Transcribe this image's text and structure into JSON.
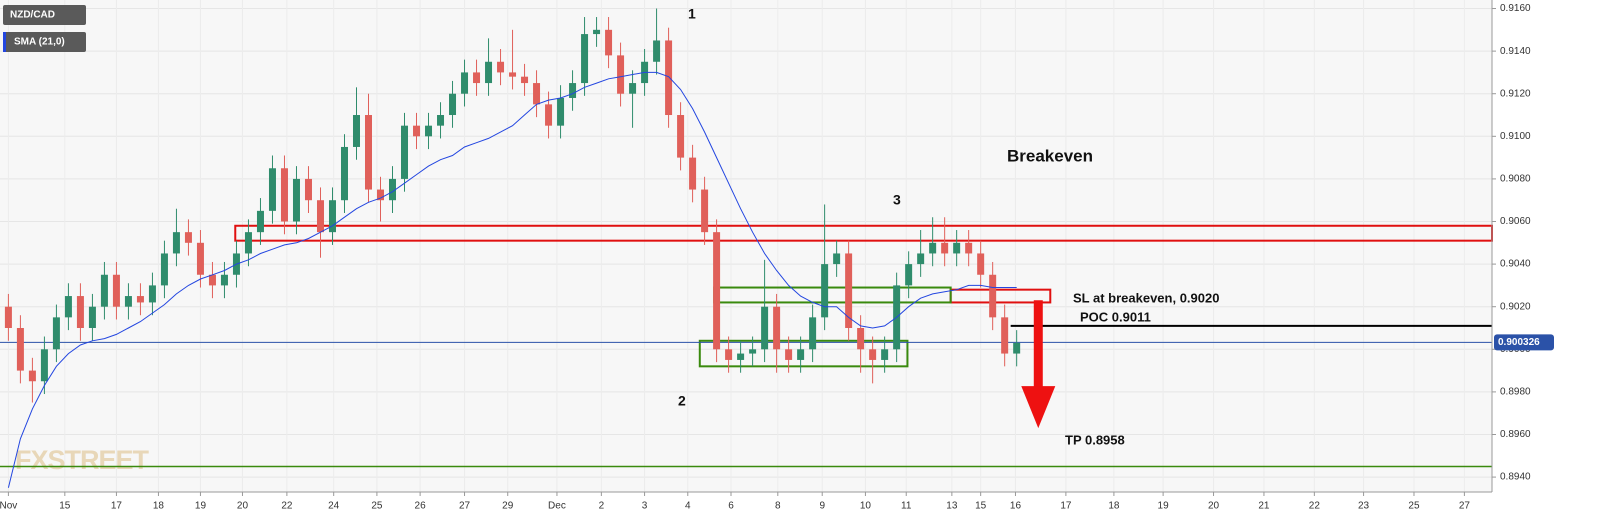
{
  "chart_data": {
    "type": "candlestick",
    "ylim": [
      0.8933,
      0.9164
    ],
    "xlim": [
      -0.7,
      123.6
    ],
    "yticks": [
      {
        "value": 0.894,
        "label": "0.8940"
      },
      {
        "value": 0.896,
        "label": "0.8960"
      },
      {
        "value": 0.898,
        "label": "0.8980"
      },
      {
        "value": 0.9,
        "label": "0.9000"
      },
      {
        "value": 0.902,
        "label": "0.9020"
      },
      {
        "value": 0.904,
        "label": "0.9040"
      },
      {
        "value": 0.906,
        "label": "0.9060"
      },
      {
        "value": 0.908,
        "label": "0.9080"
      },
      {
        "value": 0.91,
        "label": "0.9100"
      },
      {
        "value": 0.912,
        "label": "0.9120"
      },
      {
        "value": 0.914,
        "label": "0.9140"
      },
      {
        "value": 0.916,
        "label": "0.9160"
      }
    ],
    "xticks": [
      {
        "value": 0,
        "label": "Nov"
      },
      {
        "value": 4.7,
        "label": "15"
      },
      {
        "value": 9.0,
        "label": "17"
      },
      {
        "value": 12.5,
        "label": "18"
      },
      {
        "value": 16.0,
        "label": "19"
      },
      {
        "value": 19.5,
        "label": "20"
      },
      {
        "value": 23.2,
        "label": "22"
      },
      {
        "value": 27.1,
        "label": "24"
      },
      {
        "value": 30.7,
        "label": "25"
      },
      {
        "value": 34.3,
        "label": "26"
      },
      {
        "value": 38.0,
        "label": "27"
      },
      {
        "value": 41.6,
        "label": "29"
      },
      {
        "value": 45.7,
        "label": "Dec"
      },
      {
        "value": 49.4,
        "label": "2"
      },
      {
        "value": 53.0,
        "label": "3"
      },
      {
        "value": 56.6,
        "label": "4"
      },
      {
        "value": 60.2,
        "label": "6"
      },
      {
        "value": 64.1,
        "label": "8"
      },
      {
        "value": 67.8,
        "label": "9"
      },
      {
        "value": 71.4,
        "label": "10"
      },
      {
        "value": 74.8,
        "label": "11"
      },
      {
        "value": 78.6,
        "label": "13"
      },
      {
        "value": 81.0,
        "label": "15"
      },
      {
        "value": 83.9,
        "label": "16"
      },
      {
        "value": 88.1,
        "label": "17"
      },
      {
        "value": 92.1,
        "label": "18"
      },
      {
        "value": 96.2,
        "label": "19"
      },
      {
        "value": 100.4,
        "label": "20"
      },
      {
        "value": 104.6,
        "label": "21"
      },
      {
        "value": 108.8,
        "label": "22"
      },
      {
        "value": 112.9,
        "label": "23"
      },
      {
        "value": 117.1,
        "label": "25"
      },
      {
        "value": 121.3,
        "label": "27"
      }
    ],
    "grid": true,
    "series": [
      {
        "name": "NZD/CAD",
        "type": "candlestick",
        "up_color": "#2f8c6c",
        "down_color": "#e0605a",
        "open": [
          0.902,
          0.901,
          0.899,
          0.8985,
          0.9,
          0.9015,
          0.9025,
          0.901,
          0.902,
          0.9035,
          0.902,
          0.9025,
          0.9022,
          0.903,
          0.9045,
          0.9055,
          0.905,
          0.9035,
          0.903,
          0.9035,
          0.9045,
          0.9055,
          0.9065,
          0.9085,
          0.906,
          0.908,
          0.907,
          0.9055,
          0.907,
          0.9095,
          0.911,
          0.9075,
          0.907,
          0.908,
          0.9105,
          0.91,
          0.9105,
          0.911,
          0.912,
          0.913,
          0.9125,
          0.9135,
          0.913,
          0.9128,
          0.9125,
          0.9115,
          0.9105,
          0.9118,
          0.9125,
          0.9148,
          0.915,
          0.9138,
          0.912,
          0.9125,
          0.9135,
          0.9145,
          0.911,
          0.909,
          0.9075,
          0.9055,
          0.9,
          0.8995,
          0.8998,
          0.9,
          0.902,
          0.9,
          0.8995,
          0.9,
          0.9015,
          0.904,
          0.9045,
          0.901,
          0.9,
          0.8995,
          0.9,
          0.903,
          0.904,
          0.9045,
          0.905,
          0.9045,
          0.905,
          0.9045,
          0.9035,
          0.9015,
          0.8998
        ],
        "high": [
          0.9026,
          0.9016,
          0.8996,
          0.9006,
          0.9021,
          0.9031,
          0.9031,
          0.9026,
          0.9041,
          0.9041,
          0.9031,
          0.9031,
          0.9036,
          0.9051,
          0.9066,
          0.9061,
          0.9056,
          0.9041,
          0.9041,
          0.9051,
          0.9061,
          0.9071,
          0.9091,
          0.9091,
          0.9086,
          0.9086,
          0.9076,
          0.9076,
          0.9101,
          0.9123,
          0.912,
          0.9081,
          0.9086,
          0.9111,
          0.9111,
          0.9111,
          0.9116,
          0.9126,
          0.9136,
          0.9136,
          0.9146,
          0.9141,
          0.915,
          0.9134,
          0.9131,
          0.9121,
          0.9124,
          0.9131,
          0.9156,
          0.9156,
          0.9156,
          0.9144,
          0.9131,
          0.9141,
          0.916,
          0.9151,
          0.9116,
          0.9096,
          0.9081,
          0.9061,
          0.9006,
          0.9004,
          0.9006,
          0.9042,
          0.9026,
          0.9006,
          0.9006,
          0.9021,
          0.9068,
          0.9051,
          0.9051,
          0.9016,
          0.9006,
          0.9006,
          0.9036,
          0.9046,
          0.9056,
          0.9062,
          0.9062,
          0.9056,
          0.9056,
          0.9051,
          0.9041,
          0.9021,
          0.9009
        ],
        "low": [
          0.9004,
          0.8984,
          0.8975,
          0.8979,
          0.8994,
          0.9009,
          0.9004,
          0.9004,
          0.9014,
          0.9014,
          0.9014,
          0.9016,
          0.9016,
          0.9024,
          0.9039,
          0.9044,
          0.9029,
          0.9024,
          0.9024,
          0.9029,
          0.9039,
          0.9049,
          0.9059,
          0.9054,
          0.9054,
          0.9064,
          0.9043,
          0.9049,
          0.9064,
          0.9089,
          0.9069,
          0.906,
          0.9064,
          0.9074,
          0.9094,
          0.9094,
          0.9099,
          0.9104,
          0.9114,
          0.9119,
          0.9119,
          0.9124,
          0.9122,
          0.9119,
          0.9109,
          0.9099,
          0.9099,
          0.9112,
          0.9119,
          0.9142,
          0.9132,
          0.9114,
          0.9104,
          0.9119,
          0.9129,
          0.9104,
          0.9084,
          0.9069,
          0.9049,
          0.8994,
          0.8989,
          0.8989,
          0.8992,
          0.8994,
          0.8989,
          0.8989,
          0.8989,
          0.8994,
          0.9009,
          0.9034,
          0.9004,
          0.8989,
          0.8984,
          0.8989,
          0.8994,
          0.9024,
          0.9034,
          0.9039,
          0.9039,
          0.9039,
          0.9039,
          0.9029,
          0.9009,
          0.8992,
          0.8992
        ],
        "close": [
          0.901,
          0.899,
          0.8985,
          0.9,
          0.9015,
          0.9025,
          0.901,
          0.902,
          0.9035,
          0.902,
          0.9025,
          0.9022,
          0.903,
          0.9045,
          0.9055,
          0.905,
          0.9035,
          0.903,
          0.9035,
          0.9045,
          0.9055,
          0.9065,
          0.9085,
          0.906,
          0.908,
          0.907,
          0.9055,
          0.907,
          0.9095,
          0.911,
          0.9075,
          0.907,
          0.908,
          0.9105,
          0.91,
          0.9105,
          0.911,
          0.912,
          0.913,
          0.9125,
          0.9135,
          0.913,
          0.9128,
          0.9125,
          0.9115,
          0.9105,
          0.9118,
          0.9125,
          0.9148,
          0.915,
          0.9138,
          0.912,
          0.9125,
          0.9135,
          0.9145,
          0.911,
          0.909,
          0.9075,
          0.9055,
          0.9,
          0.8995,
          0.8998,
          0.9,
          0.902,
          0.9,
          0.8995,
          0.9,
          0.9015,
          0.904,
          0.9045,
          0.901,
          0.9,
          0.8995,
          0.9,
          0.903,
          0.904,
          0.9045,
          0.905,
          0.9045,
          0.905,
          0.9045,
          0.9035,
          0.9015,
          0.8998,
          0.9003
        ]
      },
      {
        "name": "SMA (21,0)",
        "type": "line",
        "color": "#2346e0",
        "values": [
          0.8935,
          0.8958,
          0.8972,
          0.8983,
          0.8992,
          0.8998,
          0.9002,
          0.9004,
          0.9005,
          0.9007,
          0.901,
          0.9013,
          0.9017,
          0.9021,
          0.9026,
          0.903,
          0.9033,
          0.9035,
          0.9037,
          0.904,
          0.9042,
          0.9045,
          0.9047,
          0.9049,
          0.905,
          0.9052,
          0.9055,
          0.9058,
          0.9062,
          0.9066,
          0.9069,
          0.9071,
          0.9074,
          0.9078,
          0.9082,
          0.9086,
          0.9089,
          0.9091,
          0.9095,
          0.9097,
          0.9099,
          0.9102,
          0.9105,
          0.911,
          0.9115,
          0.9117,
          0.9118,
          0.912,
          0.9123,
          0.9125,
          0.9127,
          0.9128,
          0.9129,
          0.913,
          0.913,
          0.9128,
          0.9122,
          0.9113,
          0.9102,
          0.909,
          0.9078,
          0.9066,
          0.9055,
          0.9045,
          0.9037,
          0.903,
          0.9025,
          0.9022,
          0.902,
          0.902,
          0.9015,
          0.9011,
          0.901,
          0.9011,
          0.9015,
          0.902,
          0.9024,
          0.9026,
          0.9027,
          0.9028,
          0.903,
          0.903,
          0.9029,
          0.9029,
          0.9029
        ]
      }
    ],
    "zones": [
      {
        "x": [
          18.9,
          123.6
        ],
        "y": [
          0.9051,
          0.9058
        ],
        "color": "#e01010"
      },
      {
        "x": [
          78.5,
          86.8
        ],
        "y": [
          0.9022,
          0.9028
        ],
        "color": "#e01010"
      },
      {
        "x": [
          58.8,
          78.5
        ],
        "y": [
          0.9022,
          0.9029
        ],
        "color": "#3a8a0e"
      },
      {
        "x": [
          57.6,
          74.9
        ],
        "y": [
          0.8992,
          0.9004
        ],
        "color": "#3a8a0e"
      }
    ],
    "levels": [
      {
        "value": 0.9011,
        "x": [
          83.5,
          123.6
        ],
        "color": "#000000"
      },
      {
        "value": 0.8945,
        "x": [
          -0.7,
          123.6
        ],
        "color": "#3a8a0e"
      }
    ],
    "last_price": {
      "value": 0.900326,
      "color": "#2b52a8"
    },
    "arrow": {
      "x": 85.8,
      "y": [
        0.9023,
        0.8963
      ],
      "color": "#ee1111"
    },
    "annotations": [
      "1",
      "2",
      "3",
      "Breakeven",
      "SL at breakeven, 0.9020",
      "POC 0.9011",
      "TP 0.8958"
    ],
    "watermark": "FXSTREET"
  }
}
